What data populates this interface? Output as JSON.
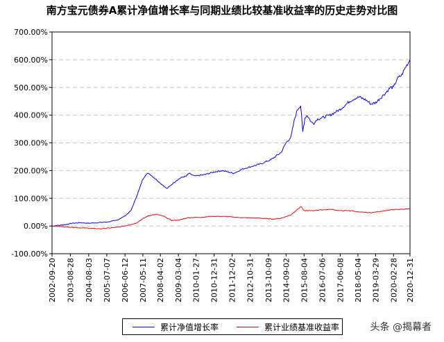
{
  "title": "南方宝元债券A累计净值增长率与同期业绩比较基准收益率的历史走势对比图",
  "watermark": "头条 @揭幕者",
  "colors": {
    "series1": "#0000ff",
    "series2": "#ff0000",
    "grid": "#c8c8c8"
  },
  "chart_data": {
    "type": "line",
    "title": "南方宝元债券A累计净值增长率与同期业绩比较基准收益率的历史走势对比图",
    "ylim": [
      -100,
      700
    ],
    "yticks": [
      -100,
      0,
      100,
      200,
      300,
      400,
      500,
      600,
      700
    ],
    "ytick_labels": [
      "-100.00%",
      "0.00%",
      "100.00%",
      "200.00%",
      "300.00%",
      "400.00%",
      "500.00%",
      "600.00%",
      "700.00%"
    ],
    "xlim": [
      "2002-09-20",
      "2020-12-31"
    ],
    "xticks": [
      "2002-09-20",
      "2003-08-28",
      "2004-08-03",
      "2005-07-07",
      "2006-06-12",
      "2007-05-11",
      "2008-04-02",
      "2009-03-04",
      "2010-01-27",
      "2010-12-31",
      "2011-12-02",
      "2012-10-31",
      "2013-10-09",
      "2014-09-02",
      "2015-08-04",
      "2016-07-06",
      "2017-06-08",
      "2018-05-04",
      "2019-03-29",
      "2020-02-28",
      "2020-12-31"
    ],
    "grid": "horizontal dashed",
    "legend": "bottom",
    "series": [
      {
        "name": "累计净值增长率",
        "color": "#0000ff",
        "x": [
          "2002-09-20",
          "2003-01-01",
          "2003-06-01",
          "2003-10-01",
          "2004-03-01",
          "2004-08-01",
          "2005-01-01",
          "2005-07-01",
          "2006-01-01",
          "2006-06-01",
          "2006-10-01",
          "2007-01-01",
          "2007-03-01",
          "2007-05-01",
          "2007-07-01",
          "2007-09-01",
          "2007-11-01",
          "2008-01-01",
          "2008-03-01",
          "2008-05-01",
          "2008-08-01",
          "2008-11-01",
          "2009-02-01",
          "2009-05-01",
          "2009-08-01",
          "2009-09-15",
          "2010-01-01",
          "2010-07-01",
          "2011-01-01",
          "2011-06-01",
          "2012-01-01",
          "2012-06-01",
          "2012-12-01",
          "2013-06-01",
          "2013-12-01",
          "2014-06-01",
          "2014-09-01",
          "2014-12-01",
          "2015-02-01",
          "2015-04-01",
          "2015-06-01",
          "2015-06-15",
          "2015-07-10",
          "2015-08-20",
          "2015-10-01",
          "2015-12-15",
          "2016-02-01",
          "2016-04-01",
          "2016-07-01",
          "2016-12-01",
          "2017-06-01",
          "2017-12-01",
          "2018-03-01",
          "2018-06-01",
          "2018-10-01",
          "2019-01-01",
          "2019-04-01",
          "2019-10-01",
          "2020-01-01",
          "2020-03-01",
          "2020-05-01",
          "2020-08-01",
          "2020-10-01",
          "2020-12-31"
        ],
        "values": [
          0,
          2,
          5,
          10,
          12,
          10,
          12,
          14,
          20,
          35,
          55,
          100,
          130,
          165,
          185,
          190,
          180,
          170,
          160,
          150,
          135,
          150,
          165,
          175,
          180,
          190,
          180,
          185,
          195,
          200,
          190,
          205,
          215,
          225,
          240,
          265,
          300,
          320,
          380,
          420,
          435,
          405,
          340,
          390,
          400,
          375,
          370,
          385,
          390,
          400,
          420,
          450,
          460,
          465,
          455,
          440,
          445,
          480,
          500,
          500,
          530,
          545,
          570,
          600
        ]
      },
      {
        "name": "累计业绩基准收益率",
        "color": "#ff0000",
        "x": [
          "2002-09-20",
          "2003-06-01",
          "2004-01-01",
          "2004-08-01",
          "2005-03-01",
          "2005-07-01",
          "2006-01-01",
          "2006-06-01",
          "2007-01-01",
          "2007-05-01",
          "2007-08-01",
          "2007-11-01",
          "2008-02-01",
          "2008-06-01",
          "2008-11-01",
          "2009-04-01",
          "2009-09-01",
          "2010-06-01",
          "2011-01-01",
          "2011-08-01",
          "2012-06-01",
          "2013-06-01",
          "2014-01-01",
          "2014-06-01",
          "2014-12-01",
          "2015-04-01",
          "2015-06-10",
          "2015-08-01",
          "2016-01-01",
          "2016-06-01",
          "2017-01-01",
          "2017-06-01",
          "2018-01-01",
          "2018-06-01",
          "2019-01-01",
          "2019-06-01",
          "2020-01-01",
          "2020-06-01",
          "2020-12-31"
        ],
        "values": [
          0,
          -3,
          -6,
          -8,
          -10,
          -8,
          -5,
          0,
          10,
          25,
          35,
          40,
          42,
          35,
          20,
          22,
          30,
          32,
          35,
          34,
          30,
          28,
          25,
          28,
          40,
          60,
          70,
          55,
          55,
          58,
          60,
          55,
          55,
          50,
          48,
          52,
          58,
          60,
          62
        ]
      }
    ]
  }
}
